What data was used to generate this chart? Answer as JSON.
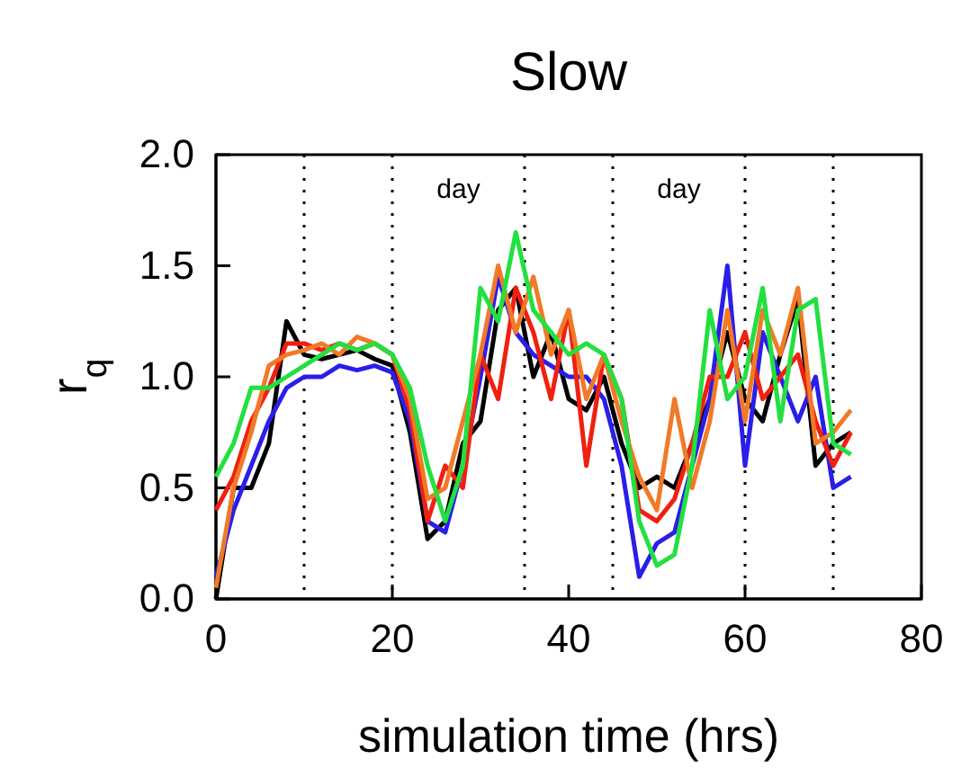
{
  "chart_data": {
    "type": "line",
    "title": "Slow",
    "xlabel": "simulation time (hrs)",
    "ylabel": "r$_{q}$",
    "x": [
      0,
      2,
      4,
      6,
      8,
      10,
      12,
      14,
      16,
      18,
      20,
      22,
      24,
      26,
      28,
      30,
      32,
      34,
      36,
      38,
      40,
      42,
      44,
      46,
      48,
      50,
      52,
      54,
      56,
      58,
      60,
      62,
      64,
      66,
      68,
      70,
      72
    ],
    "xlim": [
      0,
      80
    ],
    "xticks": [
      0,
      20,
      40,
      60,
      80
    ],
    "ylim": [
      0,
      2
    ],
    "yticks": [
      {
        "value": 0,
        "label": "0.0"
      },
      {
        "value": 0.5,
        "label": "0.5"
      },
      {
        "value": 1,
        "label": "1.0"
      },
      {
        "value": 1.5,
        "label": "1.5"
      },
      {
        "value": 2,
        "label": "2.0"
      }
    ],
    "line_style": "solid",
    "grid": false,
    "ref_lines": [
      {
        "axis": "x",
        "value": 10,
        "line_style": "dotted"
      },
      {
        "axis": "x",
        "value": 20,
        "line_style": "dotted"
      },
      {
        "axis": "x",
        "value": 35,
        "line_style": "dotted"
      },
      {
        "axis": "x",
        "value": 45,
        "line_style": "dotted"
      },
      {
        "axis": "x",
        "value": 60,
        "line_style": "dotted"
      },
      {
        "axis": "x",
        "value": 70,
        "line_style": "dotted"
      }
    ],
    "annotations": [
      "day",
      "day"
    ],
    "series": [
      {
        "color": "#000000",
        "values": [
          0,
          0.5,
          0.5,
          0.7,
          1.25,
          1.1,
          1.08,
          1.1,
          1.12,
          1.08,
          1.05,
          0.75,
          0.27,
          0.35,
          0.7,
          0.8,
          1.3,
          1.4,
          1.0,
          1.2,
          0.9,
          0.85,
          1.0,
          0.7,
          0.5,
          0.55,
          0.5,
          0.7,
          0.9,
          1.2,
          0.9,
          0.8,
          1.1,
          1.35,
          0.6,
          0.7,
          0.75
        ]
      },
      {
        "color": "#2a1ee8",
        "values": [
          0.1,
          0.4,
          0.6,
          0.8,
          0.95,
          1.0,
          1.0,
          1.05,
          1.03,
          1.05,
          1.02,
          0.8,
          0.35,
          0.3,
          0.6,
          1.0,
          1.45,
          1.2,
          1.1,
          1.05,
          1.0,
          1.0,
          0.9,
          0.6,
          0.1,
          0.25,
          0.3,
          0.6,
          0.9,
          1.5,
          0.6,
          1.2,
          1.0,
          0.8,
          1.0,
          0.5,
          0.55
        ]
      },
      {
        "color": "#f02010",
        "values": [
          0.4,
          0.55,
          0.8,
          0.95,
          1.15,
          1.15,
          1.12,
          1.15,
          1.12,
          1.15,
          1.1,
          0.85,
          0.35,
          0.6,
          0.5,
          1.1,
          0.9,
          1.4,
          1.2,
          0.9,
          1.3,
          0.6,
          1.1,
          0.9,
          0.4,
          0.35,
          0.45,
          0.7,
          1.0,
          1.0,
          1.2,
          0.9,
          1.0,
          1.1,
          0.8,
          0.6,
          0.75
        ]
      },
      {
        "color": "#f07a28",
        "values": [
          0.05,
          0.5,
          0.75,
          1.05,
          1.1,
          1.12,
          1.15,
          1.1,
          1.18,
          1.15,
          1.1,
          0.9,
          0.45,
          0.5,
          0.8,
          1.1,
          1.5,
          1.2,
          1.45,
          1.1,
          1.3,
          0.9,
          1.1,
          0.8,
          0.55,
          0.4,
          0.9,
          0.5,
          0.8,
          1.3,
          0.8,
          1.3,
          1.1,
          1.4,
          0.7,
          0.75,
          0.85
        ]
      },
      {
        "color": "#22e040",
        "values": [
          0.55,
          0.7,
          0.95,
          0.95,
          1.0,
          1.05,
          1.1,
          1.15,
          1.12,
          1.15,
          1.1,
          0.95,
          0.6,
          0.35,
          0.6,
          1.4,
          1.25,
          1.65,
          1.3,
          1.2,
          1.1,
          1.15,
          1.1,
          0.9,
          0.35,
          0.15,
          0.2,
          0.6,
          1.3,
          0.9,
          1.0,
          1.4,
          0.8,
          1.3,
          1.35,
          0.7,
          0.65
        ]
      }
    ]
  }
}
